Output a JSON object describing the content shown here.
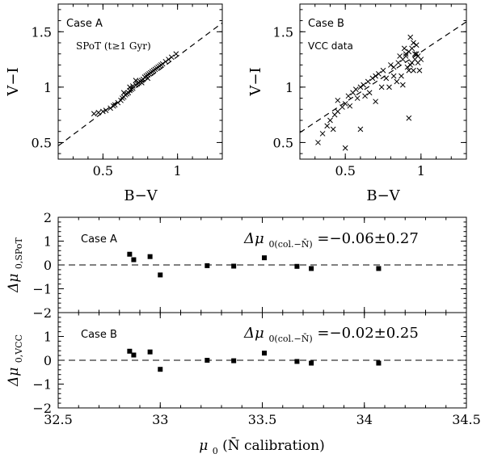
{
  "chart_data": [
    {
      "type": "scatter",
      "panel_label": "Case A",
      "subtitle": "SPoT (t≥1 Gyr)",
      "xlabel": "B−V",
      "ylabel": "V−I",
      "xlim": [
        0.2,
        1.3
      ],
      "ylim": [
        0.35,
        1.75
      ],
      "x_ticks": [
        0.5,
        1
      ],
      "y_ticks": [
        0.5,
        1,
        1.5
      ],
      "y_tick_labels": [
        "0.5",
        "1",
        "1.5"
      ],
      "x_tick_labels": [
        "0.5",
        "1"
      ],
      "points_x": [
        0.44,
        0.47,
        0.5,
        0.52,
        0.55,
        0.57,
        0.58,
        0.6,
        0.62,
        0.63,
        0.64,
        0.65,
        0.66,
        0.67,
        0.68,
        0.69,
        0.7,
        0.7,
        0.72,
        0.73,
        0.74,
        0.75,
        0.76,
        0.77,
        0.78,
        0.79,
        0.8,
        0.81,
        0.82,
        0.83,
        0.84,
        0.85,
        0.86,
        0.87,
        0.88,
        0.89,
        0.9,
        0.92,
        0.94,
        0.96,
        0.99,
        0.64,
        0.68,
        0.72,
        0.76,
        0.8
      ],
      "points_y": [
        0.76,
        0.77,
        0.78,
        0.79,
        0.81,
        0.83,
        0.84,
        0.86,
        0.88,
        0.9,
        0.91,
        0.93,
        0.94,
        0.95,
        0.97,
        0.98,
        0.99,
        1.01,
        1.02,
        1.03,
        1.04,
        1.05,
        1.06,
        1.07,
        1.09,
        1.1,
        1.11,
        1.12,
        1.13,
        1.14,
        1.15,
        1.16,
        1.17,
        1.18,
        1.19,
        1.2,
        1.21,
        1.23,
        1.25,
        1.27,
        1.3,
        0.95,
        1.0,
        1.06,
        1.04,
        1.08
      ],
      "fit_line": {
        "x": [
          0.2,
          1.3
        ],
        "y": [
          0.47,
          1.58
        ],
        "style": "dashed"
      }
    },
    {
      "type": "scatter",
      "panel_label": "Case B",
      "subtitle": "VCC data",
      "xlabel": "B−V",
      "ylabel": "V−I",
      "xlim": [
        0.2,
        1.3
      ],
      "ylim": [
        0.35,
        1.75
      ],
      "x_ticks": [
        0.5,
        1
      ],
      "y_ticks": [
        0.5,
        1,
        1.5
      ],
      "y_tick_labels": [
        "0.5",
        "1",
        "1.5"
      ],
      "x_tick_labels": [
        "0.5",
        "1"
      ],
      "points_x": [
        0.32,
        0.35,
        0.38,
        0.4,
        0.43,
        0.45,
        0.48,
        0.5,
        0.52,
        0.55,
        0.57,
        0.6,
        0.62,
        0.65,
        0.68,
        0.7,
        0.72,
        0.75,
        0.77,
        0.8,
        0.82,
        0.85,
        0.86,
        0.88,
        0.9,
        0.91,
        0.92,
        0.93,
        0.94,
        0.95,
        0.96,
        0.97,
        0.98,
        0.87,
        0.89,
        0.93,
        0.95,
        0.97,
        0.84,
        0.9,
        0.94,
        0.96,
        0.99,
        1.0,
        0.92,
        0.5,
        0.45,
        0.6,
        0.66,
        0.7,
        0.88,
        0.74,
        0.92,
        0.79,
        0.58,
        0.53,
        0.63,
        0.82,
        0.98,
        0.42
      ],
      "points_y": [
        0.5,
        0.58,
        0.65,
        0.7,
        0.75,
        0.78,
        0.82,
        0.85,
        0.92,
        0.95,
        0.98,
        1.0,
        1.02,
        1.05,
        1.08,
        1.1,
        1.12,
        1.15,
        1.08,
        1.2,
        1.18,
        1.22,
        1.28,
        1.25,
        1.3,
        1.18,
        1.32,
        1.2,
        1.35,
        1.4,
        1.25,
        1.3,
        1.22,
        1.1,
        1.35,
        1.45,
        1.15,
        1.38,
        1.05,
        1.28,
        1.22,
        1.3,
        1.15,
        1.25,
        0.72,
        0.45,
        0.88,
        0.62,
        0.95,
        0.87,
        1.02,
        1.0,
        1.15,
        1.0,
        0.9,
        0.83,
        0.92,
        1.1,
        1.28,
        0.62
      ],
      "fit_line": {
        "x": [
          0.2,
          1.3
        ],
        "y": [
          0.59,
          1.59
        ],
        "style": "dashed"
      }
    },
    {
      "type": "scatter",
      "panel_label": "Case B",
      "annotation": "Δμ0(col.−N̄) = −0.02±0.25",
      "annotation_main": "Δμ",
      "annotation_sub": "0(col.−N̄)",
      "annotation_value": "=−0.02±0.25",
      "ylabel_main": "Δμ",
      "ylabel_sub": "0,VCC",
      "xlabel_main": "μ",
      "xlabel_sub": "0",
      "xlabel_rest": " (N̄ calibration)",
      "xlim": [
        32.5,
        34.5
      ],
      "ylim": [
        -2,
        2
      ],
      "x_ticks": [
        32.5,
        33,
        33.5,
        34,
        34.5
      ],
      "x_tick_labels": [
        "32.5",
        "33",
        "33.5",
        "34",
        "34.5"
      ],
      "y_ticks": [
        -2,
        -1,
        0,
        1
      ],
      "y_tick_labels": [
        "−2",
        "−1",
        "0",
        "1"
      ],
      "zero_line": {
        "y": 0,
        "style": "dashed"
      },
      "points_x": [
        32.85,
        32.87,
        32.95,
        33.0,
        33.23,
        33.36,
        33.51,
        33.67,
        33.74,
        34.07
      ],
      "points_y": [
        0.38,
        0.22,
        0.35,
        -0.38,
        0.0,
        -0.02,
        0.3,
        -0.05,
        -0.12,
        -0.12
      ]
    },
    {
      "type": "scatter",
      "panel_label": "Case A",
      "annotation": "Δμ0(col.−N̄) = −0.06±0.27",
      "annotation_main": "Δμ",
      "annotation_sub": "0(col.−N̄)",
      "annotation_value": "=−0.06±0.27",
      "ylabel_main": "Δμ",
      "ylabel_sub": "0,SPoT",
      "xlim": [
        32.5,
        34.5
      ],
      "ylim": [
        -2,
        2
      ],
      "x_ticks": [
        32.5,
        33,
        33.5,
        34,
        34.5
      ],
      "y_ticks": [
        -2,
        -1,
        0,
        1,
        2
      ],
      "y_tick_labels": [
        "−2",
        "−1",
        "0",
        "1",
        "2"
      ],
      "zero_line": {
        "y": 0,
        "style": "dashed"
      },
      "points_x": [
        32.85,
        32.87,
        32.95,
        33.0,
        33.23,
        33.36,
        33.51,
        33.67,
        33.74,
        34.07
      ],
      "points_y": [
        0.45,
        0.22,
        0.35,
        -0.42,
        -0.03,
        -0.05,
        0.3,
        -0.06,
        -0.15,
        -0.15
      ]
    }
  ]
}
